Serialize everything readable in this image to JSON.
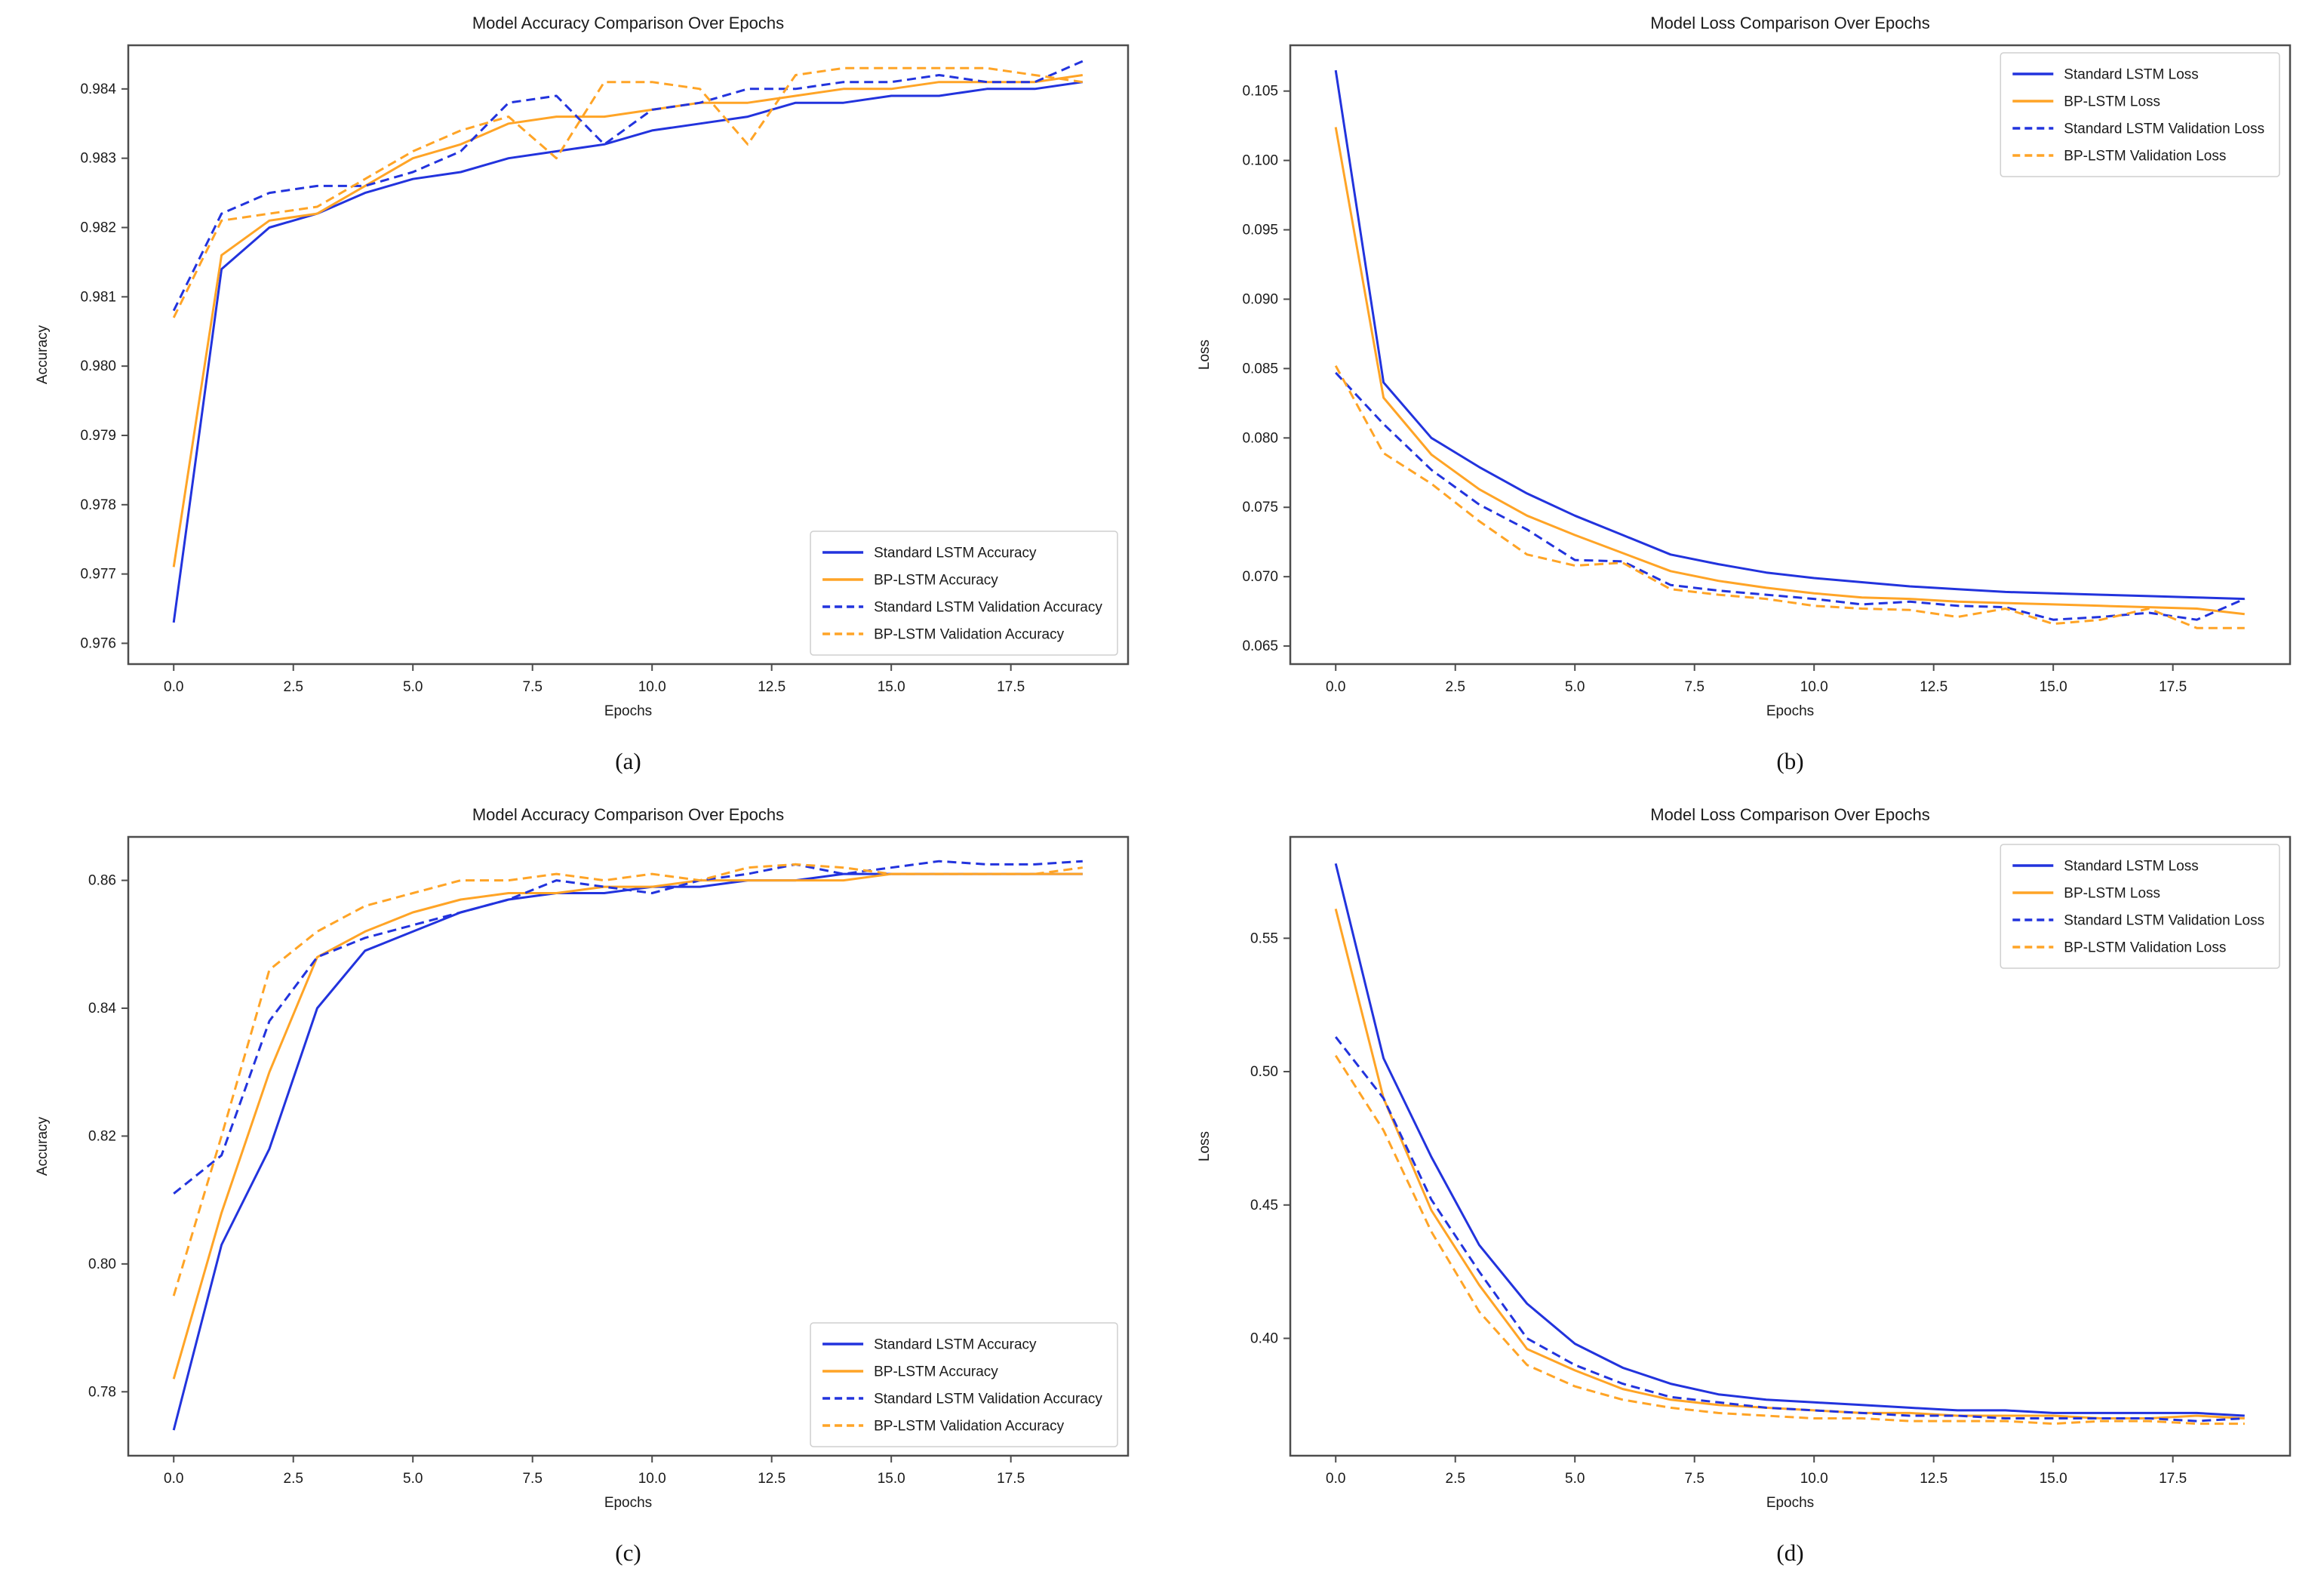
{
  "page": {
    "background": "#ffffff"
  },
  "palette": {
    "blue": "#2233dd",
    "orange": "#ffa426",
    "spine": "#4d4d4d",
    "text": "#1a1a1a",
    "legend_border": "#cfcfcf",
    "legend_bg": "#ffffff"
  },
  "chart_data": [
    {
      "type": "line",
      "caption": "(a)",
      "title": "Model Accuracy Comparison Over Epochs",
      "xlabel": "Epochs",
      "ylabel": "Accuracy",
      "legend_position": "lower right",
      "grid": false,
      "xlim": [
        -0.95,
        19.95
      ],
      "ylim": [
        0.9757,
        0.98463
      ],
      "x_ticks": [
        0,
        2.5,
        5,
        7.5,
        10,
        12.5,
        15,
        17.5
      ],
      "x_tick_labels": [
        "0.0",
        "2.5",
        "5.0",
        "7.5",
        "10.0",
        "12.5",
        "15.0",
        "17.5"
      ],
      "y_ticks": [
        0.976,
        0.977,
        0.978,
        0.979,
        0.98,
        0.981,
        0.982,
        0.983,
        0.984
      ],
      "y_tick_labels": [
        "0.976",
        "0.977",
        "0.978",
        "0.979",
        "0.980",
        "0.981",
        "0.982",
        "0.983",
        "0.984"
      ],
      "epochs": [
        0,
        1,
        2,
        3,
        4,
        5,
        6,
        7,
        8,
        9,
        10,
        11,
        12,
        13,
        14,
        15,
        16,
        17,
        18,
        19
      ],
      "series": [
        {
          "name": "standard-lstm-accuracy",
          "label": "Standard LSTM Accuracy",
          "color": "blue",
          "dashed": false,
          "values": [
            0.9763,
            0.9814,
            0.982,
            0.9822,
            0.9825,
            0.9827,
            0.9828,
            0.983,
            0.9831,
            0.9832,
            0.9834,
            0.9835,
            0.9836,
            0.9838,
            0.9838,
            0.9839,
            0.9839,
            0.984,
            0.984,
            0.9841
          ]
        },
        {
          "name": "bp-lstm-accuracy",
          "label": "BP-LSTM Accuracy",
          "color": "orange",
          "dashed": false,
          "values": [
            0.9771,
            0.9816,
            0.9821,
            0.9822,
            0.9826,
            0.983,
            0.9832,
            0.9835,
            0.9836,
            0.9836,
            0.9837,
            0.9838,
            0.9838,
            0.9839,
            0.984,
            0.984,
            0.9841,
            0.9841,
            0.9841,
            0.9842
          ]
        },
        {
          "name": "standard-lstm-validation-accuracy",
          "label": "Standard LSTM Validation Accuracy",
          "color": "blue",
          "dashed": true,
          "values": [
            0.9808,
            0.9822,
            0.9825,
            0.9826,
            0.9826,
            0.9828,
            0.9831,
            0.9838,
            0.9839,
            0.9832,
            0.9837,
            0.9838,
            0.984,
            0.984,
            0.9841,
            0.9841,
            0.9842,
            0.9841,
            0.9841,
            0.9844
          ]
        },
        {
          "name": "bp-lstm-validation-accuracy",
          "label": "BP-LSTM Validation Accuracy",
          "color": "orange",
          "dashed": true,
          "values": [
            0.9807,
            0.9821,
            0.9822,
            0.9823,
            0.9827,
            0.9831,
            0.9834,
            0.9836,
            0.983,
            0.9841,
            0.9841,
            0.984,
            0.9832,
            0.9842,
            0.9843,
            0.9843,
            0.9843,
            0.9843,
            0.9842,
            0.9841
          ]
        }
      ]
    },
    {
      "type": "line",
      "caption": "(b)",
      "title": "Model Loss Comparison Over Epochs",
      "xlabel": "Epochs",
      "ylabel": "Loss",
      "legend_position": "upper right",
      "grid": false,
      "xlim": [
        -0.95,
        19.95
      ],
      "ylim": [
        0.0637,
        0.1083
      ],
      "x_ticks": [
        0,
        2.5,
        5,
        7.5,
        10,
        12.5,
        15,
        17.5
      ],
      "x_tick_labels": [
        "0.0",
        "2.5",
        "5.0",
        "7.5",
        "10.0",
        "12.5",
        "15.0",
        "17.5"
      ],
      "y_ticks": [
        0.065,
        0.07,
        0.075,
        0.08,
        0.085,
        0.09,
        0.095,
        0.1,
        0.105
      ],
      "y_tick_labels": [
        "0.065",
        "0.070",
        "0.075",
        "0.080",
        "0.085",
        "0.090",
        "0.095",
        "0.100",
        "0.105"
      ],
      "epochs": [
        0,
        1,
        2,
        3,
        4,
        5,
        6,
        7,
        8,
        9,
        10,
        11,
        12,
        13,
        14,
        15,
        16,
        17,
        18,
        19
      ],
      "series": [
        {
          "name": "standard-lstm-loss",
          "label": "Standard LSTM Loss",
          "color": "blue",
          "dashed": false,
          "values": [
            0.1065,
            0.084,
            0.08,
            0.0779,
            0.076,
            0.0744,
            0.073,
            0.0716,
            0.0709,
            0.0703,
            0.0699,
            0.0696,
            0.0693,
            0.0691,
            0.0689,
            0.0688,
            0.0687,
            0.0686,
            0.0685,
            0.0684
          ]
        },
        {
          "name": "bp-lstm-loss",
          "label": "BP-LSTM Loss",
          "color": "orange",
          "dashed": false,
          "values": [
            0.1024,
            0.0829,
            0.0788,
            0.0763,
            0.0744,
            0.073,
            0.0717,
            0.0704,
            0.0697,
            0.0692,
            0.0688,
            0.0685,
            0.0684,
            0.0682,
            0.0681,
            0.068,
            0.0679,
            0.0678,
            0.0677,
            0.0673
          ]
        },
        {
          "name": "standard-lstm-validation-loss",
          "label": "Standard LSTM Validation Loss",
          "color": "blue",
          "dashed": true,
          "values": [
            0.0847,
            0.081,
            0.0777,
            0.0752,
            0.0734,
            0.0712,
            0.0711,
            0.0694,
            0.069,
            0.0687,
            0.0684,
            0.068,
            0.0682,
            0.0679,
            0.0678,
            0.0669,
            0.0671,
            0.0674,
            0.0669,
            0.0684
          ]
        },
        {
          "name": "bp-lstm-validation-loss",
          "label": "BP-LSTM Validation Loss",
          "color": "orange",
          "dashed": true,
          "values": [
            0.0852,
            0.0789,
            0.0767,
            0.074,
            0.0716,
            0.0708,
            0.071,
            0.0691,
            0.0687,
            0.0684,
            0.0679,
            0.0677,
            0.0676,
            0.0671,
            0.0677,
            0.0666,
            0.0669,
            0.0677,
            0.0663,
            0.0663
          ]
        }
      ]
    },
    {
      "type": "line",
      "caption": "(c)",
      "title": "Model Accuracy Comparison Over Epochs",
      "xlabel": "Epochs",
      "ylabel": "Accuracy",
      "legend_position": "lower right",
      "grid": false,
      "xlim": [
        -0.95,
        19.95
      ],
      "ylim": [
        0.77,
        0.8668
      ],
      "x_ticks": [
        0,
        2.5,
        5,
        7.5,
        10,
        12.5,
        15,
        17.5
      ],
      "x_tick_labels": [
        "0.0",
        "2.5",
        "5.0",
        "7.5",
        "10.0",
        "12.5",
        "15.0",
        "17.5"
      ],
      "y_ticks": [
        0.78,
        0.8,
        0.82,
        0.84,
        0.86
      ],
      "y_tick_labels": [
        "0.78",
        "0.80",
        "0.82",
        "0.84",
        "0.86"
      ],
      "epochs": [
        0,
        1,
        2,
        3,
        4,
        5,
        6,
        7,
        8,
        9,
        10,
        11,
        12,
        13,
        14,
        15,
        16,
        17,
        18,
        19
      ],
      "series": [
        {
          "name": "standard-lstm-accuracy",
          "label": "Standard LSTM Accuracy",
          "color": "blue",
          "dashed": false,
          "values": [
            0.774,
            0.803,
            0.818,
            0.84,
            0.849,
            0.852,
            0.855,
            0.857,
            0.858,
            0.858,
            0.859,
            0.859,
            0.86,
            0.86,
            0.861,
            0.861,
            0.861,
            0.861,
            0.861,
            0.861
          ]
        },
        {
          "name": "bp-lstm-accuracy",
          "label": "BP-LSTM Accuracy",
          "color": "orange",
          "dashed": false,
          "values": [
            0.782,
            0.808,
            0.83,
            0.848,
            0.852,
            0.855,
            0.857,
            0.858,
            0.858,
            0.859,
            0.859,
            0.86,
            0.86,
            0.86,
            0.86,
            0.861,
            0.861,
            0.861,
            0.861,
            0.861
          ]
        },
        {
          "name": "standard-lstm-validation-accuracy",
          "label": "Standard LSTM Validation Accuracy",
          "color": "blue",
          "dashed": true,
          "values": [
            0.811,
            0.817,
            0.838,
            0.848,
            0.851,
            0.853,
            0.855,
            0.857,
            0.86,
            0.859,
            0.858,
            0.86,
            0.861,
            0.8625,
            0.861,
            0.862,
            0.863,
            0.8625,
            0.8625,
            0.863
          ]
        },
        {
          "name": "bp-lstm-validation-accuracy",
          "label": "BP-LSTM Validation Accuracy",
          "color": "orange",
          "dashed": true,
          "values": [
            0.795,
            0.82,
            0.846,
            0.852,
            0.856,
            0.858,
            0.86,
            0.86,
            0.861,
            0.86,
            0.861,
            0.86,
            0.862,
            0.8625,
            0.862,
            0.861,
            0.861,
            0.861,
            0.861,
            0.862
          ]
        }
      ]
    },
    {
      "type": "line",
      "caption": "(d)",
      "title": "Model Loss Comparison Over Epochs",
      "xlabel": "Epochs",
      "ylabel": "Loss",
      "legend_position": "upper right",
      "grid": false,
      "xlim": [
        -0.95,
        19.95
      ],
      "ylim": [
        0.356,
        0.588
      ],
      "x_ticks": [
        0,
        2.5,
        5,
        7.5,
        10,
        12.5,
        15,
        17.5
      ],
      "x_tick_labels": [
        "0.0",
        "2.5",
        "5.0",
        "7.5",
        "10.0",
        "12.5",
        "15.0",
        "17.5"
      ],
      "y_ticks": [
        0.4,
        0.45,
        0.5,
        0.55
      ],
      "y_tick_labels": [
        "0.40",
        "0.45",
        "0.50",
        "0.55"
      ],
      "epochs": [
        0,
        1,
        2,
        3,
        4,
        5,
        6,
        7,
        8,
        9,
        10,
        11,
        12,
        13,
        14,
        15,
        16,
        17,
        18,
        19
      ],
      "series": [
        {
          "name": "standard-lstm-loss",
          "label": "Standard LSTM Loss",
          "color": "blue",
          "dashed": false,
          "values": [
            0.578,
            0.505,
            0.468,
            0.435,
            0.413,
            0.398,
            0.389,
            0.383,
            0.379,
            0.377,
            0.376,
            0.375,
            0.374,
            0.373,
            0.373,
            0.372,
            0.372,
            0.372,
            0.372,
            0.371
          ]
        },
        {
          "name": "bp-lstm-loss",
          "label": "BP-LSTM Loss",
          "color": "orange",
          "dashed": false,
          "values": [
            0.561,
            0.49,
            0.448,
            0.42,
            0.396,
            0.388,
            0.381,
            0.377,
            0.375,
            0.374,
            0.373,
            0.372,
            0.372,
            0.371,
            0.371,
            0.371,
            0.37,
            0.37,
            0.371,
            0.37
          ]
        },
        {
          "name": "standard-lstm-validation-loss",
          "label": "Standard LSTM Validation Loss",
          "color": "blue",
          "dashed": true,
          "values": [
            0.513,
            0.49,
            0.452,
            0.425,
            0.4,
            0.39,
            0.383,
            0.378,
            0.376,
            0.374,
            0.373,
            0.372,
            0.371,
            0.371,
            0.37,
            0.37,
            0.37,
            0.37,
            0.369,
            0.37
          ]
        },
        {
          "name": "bp-lstm-validation-loss",
          "label": "BP-LSTM Validation Loss",
          "color": "orange",
          "dashed": true,
          "values": [
            0.506,
            0.478,
            0.44,
            0.41,
            0.39,
            0.382,
            0.377,
            0.374,
            0.372,
            0.371,
            0.37,
            0.37,
            0.369,
            0.369,
            0.369,
            0.368,
            0.369,
            0.369,
            0.368,
            0.368
          ]
        }
      ]
    }
  ]
}
